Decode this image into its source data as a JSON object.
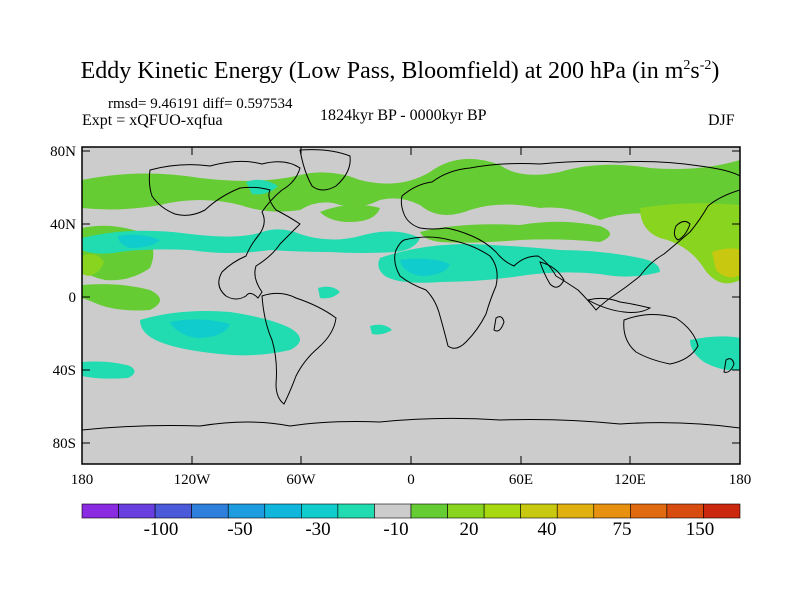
{
  "title": {
    "main": "Eddy Kinetic Energy (Low Pass, Bloomfield) at 200 hPa (in m",
    "sup1": "2",
    "mid": "s",
    "sup2": "-2",
    "close": ")"
  },
  "stats": "rmsd= 9.46191 diff= 0.597534",
  "expt": "Expt = xQFUO-xqfua",
  "period": "1824kyr BP - 0000kyr BP",
  "season": "DJF",
  "lat_ticks": [
    "80N",
    "40N",
    "0",
    "40S",
    "80S"
  ],
  "lon_ticks": [
    "180",
    "120W",
    "60W",
    "0",
    "60E",
    "120E",
    "180"
  ],
  "colorbar": {
    "labels": [
      "-100",
      "-50",
      "-30",
      "-10",
      "20",
      "40",
      "75",
      "150"
    ],
    "colors": [
      "#8a2be2",
      "#6a3fe0",
      "#4a5ad8",
      "#2f7fdc",
      "#1e9ce0",
      "#10b6dc",
      "#10cccc",
      "#20dcb0",
      "#cccccc",
      "#66cc33",
      "#88d41e",
      "#a8d810",
      "#c8c810",
      "#e0b010",
      "#e89010",
      "#e06a10",
      "#d84c10",
      "#cc2810"
    ]
  },
  "palette": {
    "neg_weak": "#20dcb0",
    "neg_mod": "#10cccc",
    "neg_strong": "#1e9ce0",
    "pos_weak": "#66cc33",
    "pos_mod": "#88d41e",
    "pos_strong": "#c8c810",
    "background": "#cccccc"
  }
}
